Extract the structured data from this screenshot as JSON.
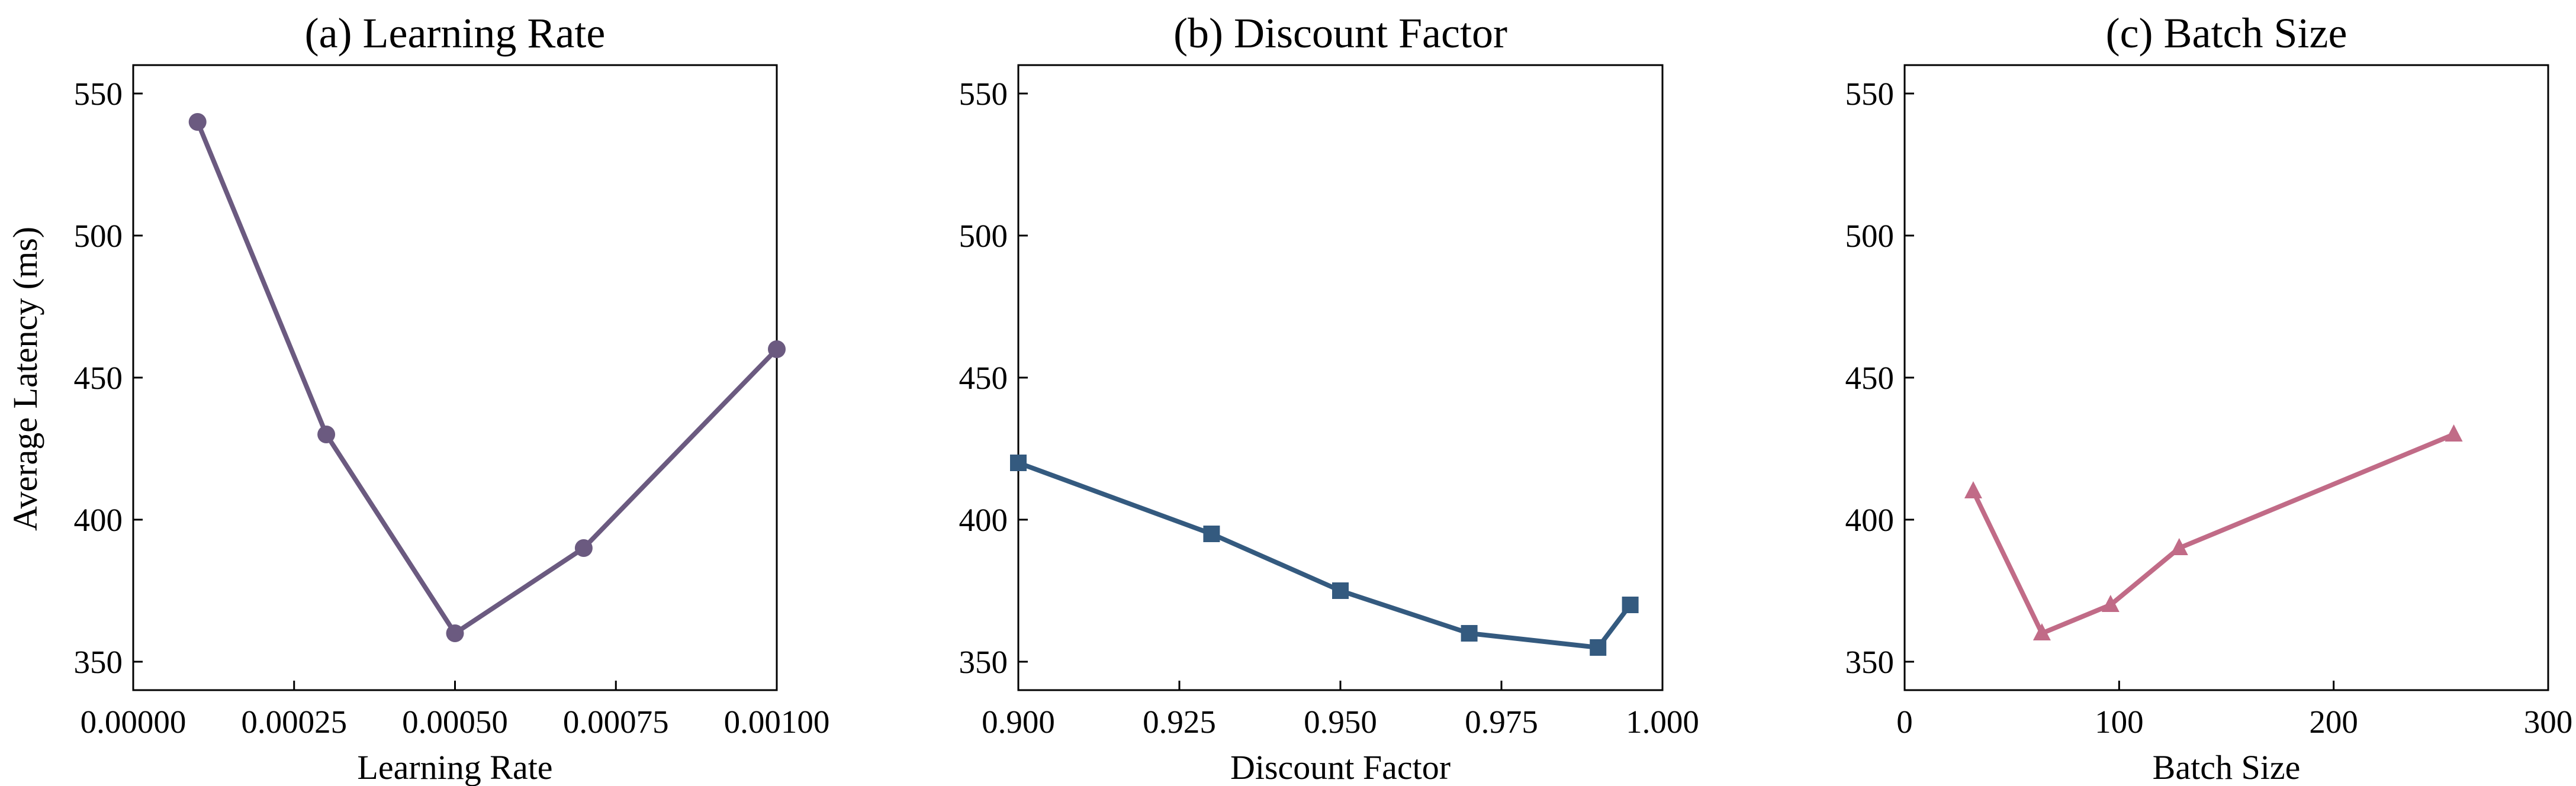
{
  "figure": {
    "shared_ylabel": "Average Latency (ms)"
  },
  "chart_data": [
    {
      "type": "line",
      "title": "(a) Learning Rate",
      "xlabel": "Learning Rate",
      "ylabel": "Average Latency (ms)",
      "xlim": [
        0.0,
        0.001
      ],
      "ylim": [
        340,
        560
      ],
      "xticks": [
        0.0,
        0.00025,
        0.0005,
        0.00075,
        0.001
      ],
      "xtick_labels": [
        "0.00000",
        "0.00025",
        "0.00050",
        "0.00075",
        "0.00100"
      ],
      "yticks": [
        350,
        400,
        450,
        500,
        550
      ],
      "ytick_labels": [
        "350",
        "400",
        "450",
        "500",
        "550"
      ],
      "marker": "circle",
      "color": "#6b5a80",
      "series": [
        {
          "x": [
            0.0001,
            0.0003,
            0.0005,
            0.0007,
            0.001
          ],
          "y": [
            540,
            430,
            360,
            390,
            460
          ]
        }
      ]
    },
    {
      "type": "line",
      "title": "(b) Discount Factor",
      "xlabel": "Discount Factor",
      "ylabel": "",
      "xlim": [
        0.9,
        1.0
      ],
      "ylim": [
        340,
        560
      ],
      "xticks": [
        0.9,
        0.925,
        0.95,
        0.975,
        1.0
      ],
      "xtick_labels": [
        "0.900",
        "0.925",
        "0.950",
        "0.975",
        "1.000"
      ],
      "yticks": [
        350,
        400,
        450,
        500,
        550
      ],
      "ytick_labels": [
        "350",
        "400",
        "450",
        "500",
        "550"
      ],
      "marker": "square",
      "color": "#345a7f",
      "series": [
        {
          "x": [
            0.9,
            0.93,
            0.95,
            0.97,
            0.99,
            0.995
          ],
          "y": [
            420,
            395,
            375,
            360,
            355,
            370
          ]
        }
      ]
    },
    {
      "type": "line",
      "title": "(c) Batch Size",
      "xlabel": "Batch Size",
      "ylabel": "",
      "xlim": [
        0,
        300
      ],
      "ylim": [
        340,
        560
      ],
      "xticks": [
        0,
        100,
        200,
        300
      ],
      "xtick_labels": [
        "0",
        "100",
        "200",
        "300"
      ],
      "yticks": [
        350,
        400,
        450,
        500,
        550
      ],
      "ytick_labels": [
        "350",
        "400",
        "450",
        "500",
        "550"
      ],
      "marker": "triangle",
      "color": "#c16b87",
      "series": [
        {
          "x": [
            32,
            64,
            96,
            128,
            256
          ],
          "y": [
            410,
            360,
            370,
            390,
            430
          ]
        }
      ]
    }
  ]
}
